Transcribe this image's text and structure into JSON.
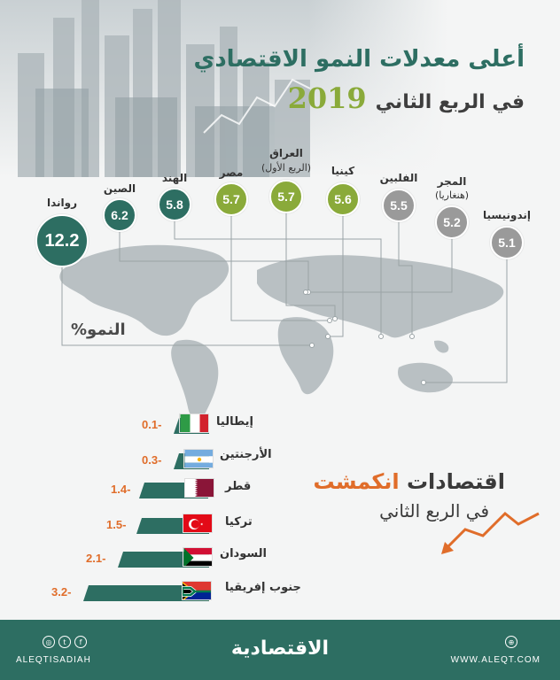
{
  "title": {
    "line1": "أعلى معدلات النمو الاقتصادي",
    "line2": "في الربع الثاني",
    "year": "2019"
  },
  "growth_axis_label": "النمو%",
  "top_growth": [
    {
      "country": "رواندا",
      "value": "12.2",
      "color": "#2d6e62"
    },
    {
      "country": "الصين",
      "value": "6.2",
      "color": "#2d6e62"
    },
    {
      "country": "الهند",
      "value": "5.8",
      "color": "#2d6e62"
    },
    {
      "country": "مصر",
      "value": "5.7",
      "color": "#8aaa3a"
    },
    {
      "country": "العراق",
      "note": "(الربع الأول)",
      "value": "5.7",
      "color": "#8aaa3a"
    },
    {
      "country": "كينيا",
      "value": "5.6",
      "color": "#8aaa3a"
    },
    {
      "country": "الفلبين",
      "value": "5.5",
      "color": "#9a9a9a"
    },
    {
      "country": "المجر",
      "note": "(هنغاريا)",
      "value": "5.2",
      "color": "#9a9a9a"
    },
    {
      "country": "إندونيسيا",
      "value": "5.1",
      "color": "#9a9a9a"
    }
  ],
  "contracted": {
    "title_part1": "اقتصادات",
    "title_part2": "انكمشت",
    "subtitle": "في الربع الثاني",
    "accent_color": "#e06d2a",
    "items": [
      {
        "country": "إيطاليا",
        "value": "0.1-",
        "flag": "italy-flag"
      },
      {
        "country": "الأرجنتين",
        "value": "0.3-",
        "flag": "argentina-flag"
      },
      {
        "country": "قطر",
        "value": "1.4-",
        "flag": "qatar-flag"
      },
      {
        "country": "تركيا",
        "value": "1.5-",
        "flag": "turkey-flag"
      },
      {
        "country": "السودان",
        "value": "2.1-",
        "flag": "sudan-flag"
      },
      {
        "country": "جنوب إفريقيا",
        "value": "3.2-",
        "flag": "south-africa-flag"
      }
    ]
  },
  "footer": {
    "brand": "الاقتصادية",
    "handle": "ALEQTISADIAH",
    "site": "WWW.ALEQT.COM",
    "icons": [
      "instagram-icon",
      "twitter-icon",
      "facebook-icon",
      "web-icon"
    ]
  }
}
